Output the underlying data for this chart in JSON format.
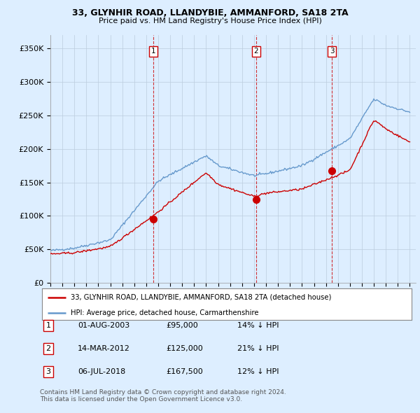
{
  "title": "33, GLYNHIR ROAD, LLANDYBIE, AMMANFORD, SA18 2TA",
  "subtitle": "Price paid vs. HM Land Registry's House Price Index (HPI)",
  "ylabel_ticks": [
    "£0",
    "£50K",
    "£100K",
    "£150K",
    "£200K",
    "£250K",
    "£300K",
    "£350K"
  ],
  "ytick_values": [
    0,
    50000,
    100000,
    150000,
    200000,
    250000,
    300000,
    350000
  ],
  "ylim": [
    0,
    370000
  ],
  "xlim_start": 1995.0,
  "xlim_end": 2025.5,
  "sale_dates": [
    2003.583,
    2012.17,
    2018.5
  ],
  "sale_prices": [
    95000,
    125000,
    167500
  ],
  "sale_labels": [
    "1",
    "2",
    "3"
  ],
  "sale_label_dates": [
    "01-AUG-2003",
    "14-MAR-2012",
    "06-JUL-2018"
  ],
  "sale_label_prices": [
    "£95,000",
    "£125,000",
    "£167,500"
  ],
  "sale_label_hpi": [
    "14% ↓ HPI",
    "21% ↓ HPI",
    "12% ↓ HPI"
  ],
  "legend_line1": "33, GLYNHIR ROAD, LLANDYBIE, AMMANFORD, SA18 2TA (detached house)",
  "legend_line2": "HPI: Average price, detached house, Carmarthenshire",
  "footer1": "Contains HM Land Registry data © Crown copyright and database right 2024.",
  "footer2": "This data is licensed under the Open Government Licence v3.0.",
  "line_color_red": "#cc0000",
  "line_color_blue": "#6699cc",
  "vline_color": "#cc0000",
  "bg_color": "#ddeeff",
  "plot_bg": "#ddeeff",
  "grid_color": "#bbccdd"
}
